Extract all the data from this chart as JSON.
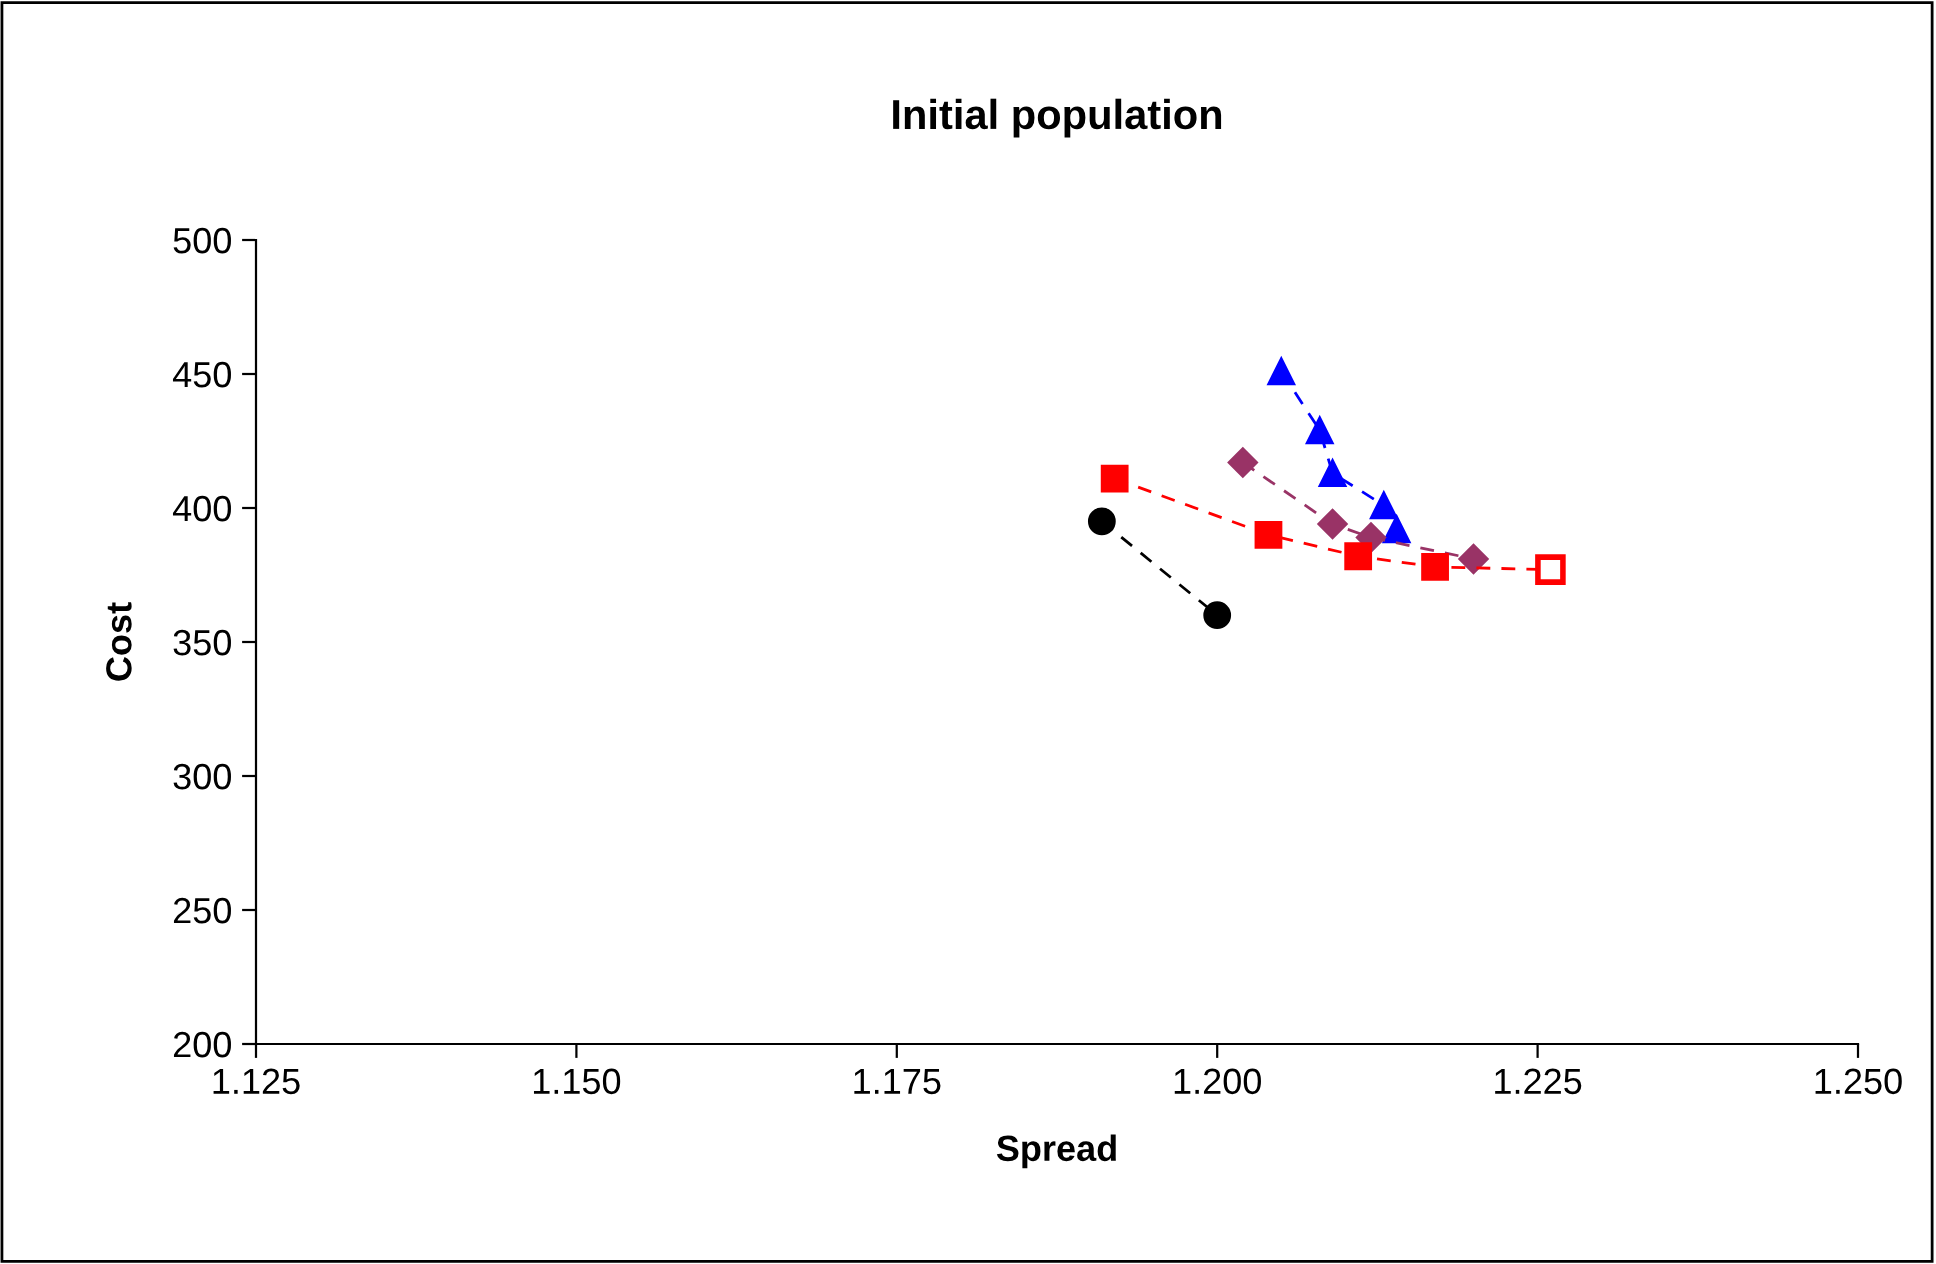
{
  "chart_data": {
    "type": "line",
    "title": "Initial population",
    "xlabel": "Spread",
    "ylabel": "Cost",
    "xlim": [
      1.125,
      1.25
    ],
    "xticks": [
      {
        "value": 1.125,
        "label": "1.125"
      },
      {
        "value": 1.15,
        "label": "1.150"
      },
      {
        "value": 1.175,
        "label": "1.175"
      },
      {
        "value": 1.2,
        "label": "1.200"
      },
      {
        "value": 1.225,
        "label": "1.225"
      },
      {
        "value": 1.25,
        "label": "1.250"
      }
    ],
    "ylim": [
      200,
      500
    ],
    "yticks": [
      200,
      250,
      300,
      350,
      400,
      450,
      500
    ],
    "grid": false,
    "legend": false,
    "line_style": "dashed",
    "series": [
      {
        "color": "#000000",
        "marker": "circle",
        "x": [
          1.191,
          1.2
        ],
        "values": [
          395,
          360
        ]
      },
      {
        "color": "#0000ff",
        "marker": "triangle",
        "x": [
          1.205,
          1.208,
          1.209,
          1.213,
          1.214
        ],
        "values": [
          451,
          429,
          413,
          401,
          392
        ]
      },
      {
        "color": "#993366",
        "marker": "diamond",
        "x": [
          1.202,
          1.209,
          1.212,
          1.22
        ],
        "values": [
          417,
          394,
          389,
          381
        ]
      },
      {
        "color": "#ff0000",
        "marker": "square",
        "x": [
          1.192,
          1.204,
          1.211,
          1.217,
          1.226
        ],
        "values": [
          411,
          390,
          382,
          378,
          377
        ],
        "colors": [
          "#ff0000",
          "#ff0000",
          "#ff0000",
          "#ff0000",
          "#ffffff"
        ]
      }
    ]
  }
}
